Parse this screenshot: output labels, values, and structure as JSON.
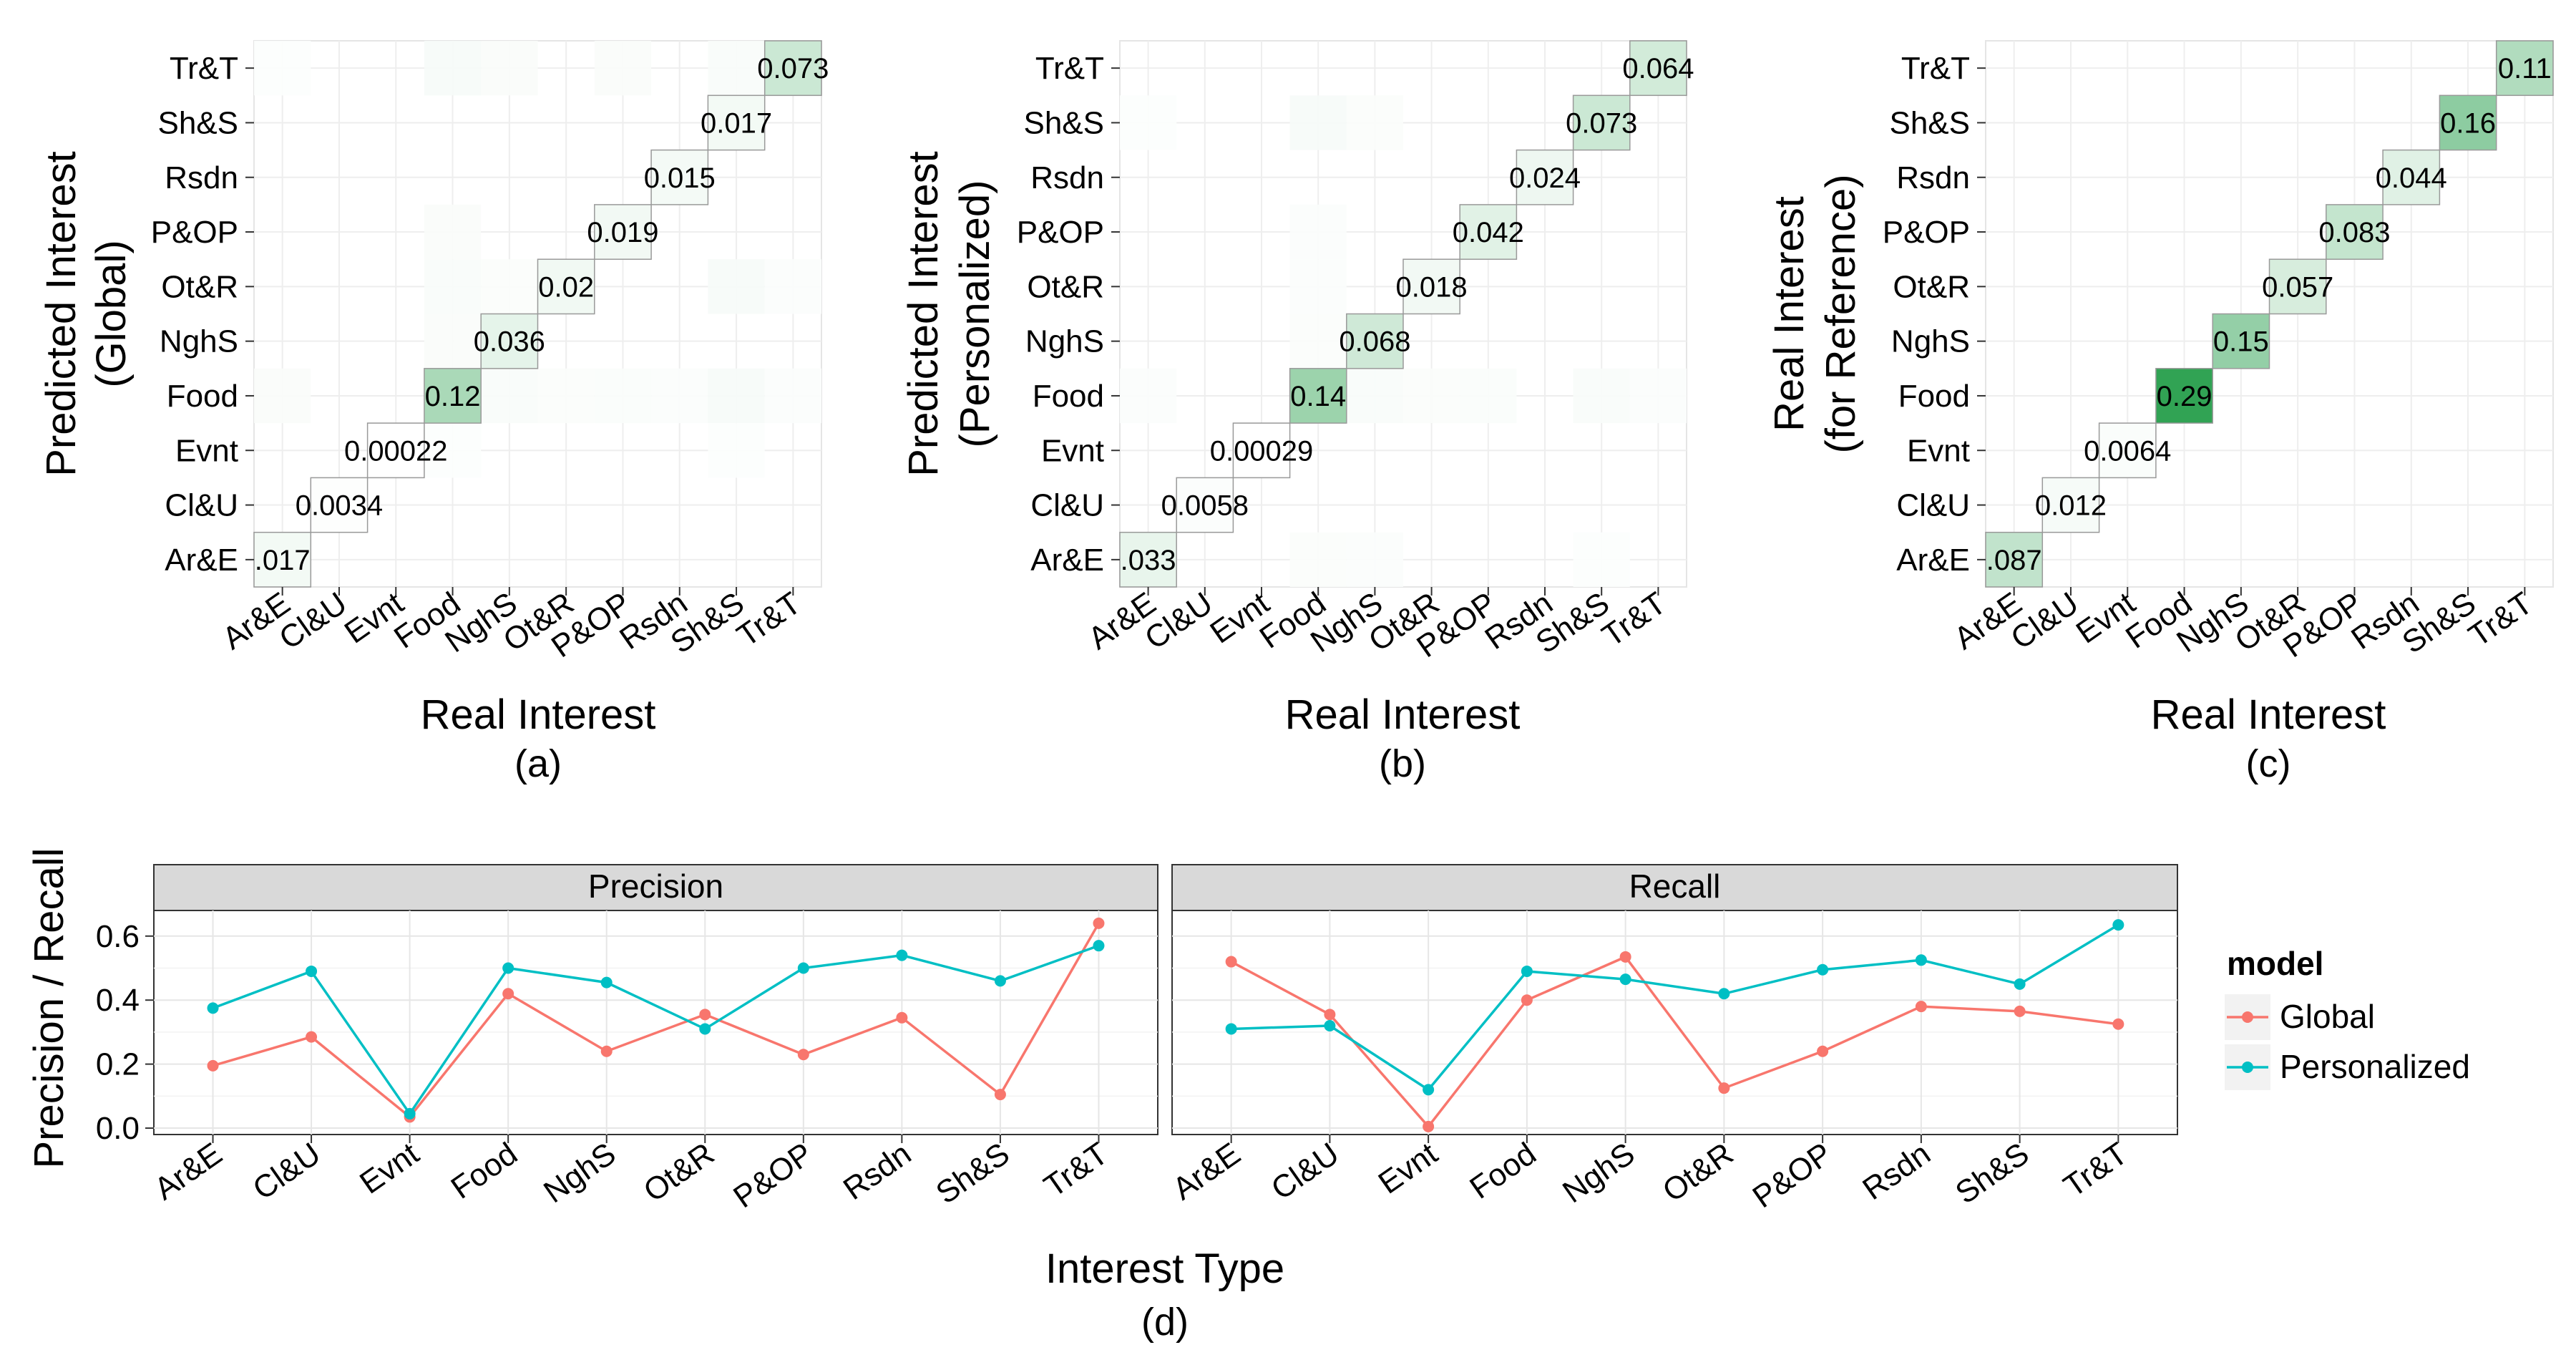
{
  "chart_data": [
    {
      "type": "heatmap",
      "panel": "(a)",
      "xlabel": "Real Interest",
      "ylabel": [
        "Predicted Interest",
        "(Global)"
      ],
      "categories": [
        "Ar&E",
        "Cl&U",
        "Evnt",
        "Food",
        "NghS",
        "Ot&R",
        "P&OP",
        "Rsdn",
        "Sh&S",
        "Tr&T"
      ],
      "diagonal_values": [
        0.017,
        0.0034,
        0.00022,
        0.12,
        0.036,
        0.02,
        0.019,
        0.015,
        0.017,
        0.073
      ],
      "diagonal_labels": [
        ".017",
        "0.0034",
        "0.00022",
        "0.12",
        "0.036",
        "0.02",
        "0.019",
        "0.015",
        "0.017",
        "0.073"
      ],
      "off_diagonal": [
        {
          "x": "Food",
          "y": "Tr&T",
          "value": 0.012
        },
        {
          "x": "NghS",
          "y": "Tr&T",
          "value": 0.008
        },
        {
          "x": "P&OP",
          "y": "Tr&T",
          "value": 0.008
        },
        {
          "x": "Sh&S",
          "y": "Tr&T",
          "value": 0.01
        },
        {
          "x": "Ar&E",
          "y": "Tr&T",
          "value": 0.004
        },
        {
          "x": "Food",
          "y": "P&OP",
          "value": 0.008
        },
        {
          "x": "Food",
          "y": "Ot&R",
          "value": 0.01
        },
        {
          "x": "NghS",
          "y": "Ot&R",
          "value": 0.006
        },
        {
          "x": "Sh&S",
          "y": "Ot&R",
          "value": 0.012
        },
        {
          "x": "Tr&T",
          "y": "Ot&R",
          "value": 0.005
        },
        {
          "x": "Ar&E",
          "y": "Food",
          "value": 0.008
        },
        {
          "x": "NghS",
          "y": "Food",
          "value": 0.01
        },
        {
          "x": "Ot&R",
          "y": "Food",
          "value": 0.006
        },
        {
          "x": "P&OP",
          "y": "Food",
          "value": 0.007
        },
        {
          "x": "Rsdn",
          "y": "Food",
          "value": 0.005
        },
        {
          "x": "Sh&S",
          "y": "Food",
          "value": 0.012
        },
        {
          "x": "Tr&T",
          "y": "Food",
          "value": 0.005
        },
        {
          "x": "Food",
          "y": "NghS",
          "value": 0.008
        },
        {
          "x": "Food",
          "y": "Evnt",
          "value": 0.004
        },
        {
          "x": "Sh&S",
          "y": "Evnt",
          "value": 0.004
        }
      ],
      "grid": true
    },
    {
      "type": "heatmap",
      "panel": "(b)",
      "xlabel": "Real Interest",
      "ylabel": [
        "Predicted Interest",
        "(Personalized)"
      ],
      "categories": [
        "Ar&E",
        "Cl&U",
        "Evnt",
        "Food",
        "NghS",
        "Ot&R",
        "P&OP",
        "Rsdn",
        "Sh&S",
        "Tr&T"
      ],
      "diagonal_values": [
        0.033,
        0.0058,
        0.00029,
        0.14,
        0.068,
        0.018,
        0.042,
        0.024,
        0.073,
        0.064
      ],
      "diagonal_labels": [
        ".033",
        "0.0058",
        "0.00029",
        "0.14",
        "0.068",
        "0.018",
        "0.042",
        "0.024",
        "0.073",
        "0.064"
      ],
      "off_diagonal": [
        {
          "x": "Food",
          "y": "Sh&S",
          "value": 0.012
        },
        {
          "x": "NghS",
          "y": "Sh&S",
          "value": 0.006
        },
        {
          "x": "Ar&E",
          "y": "Sh&S",
          "value": 0.004
        },
        {
          "x": "Food",
          "y": "P&OP",
          "value": 0.005
        },
        {
          "x": "Food",
          "y": "Ot&R",
          "value": 0.005
        },
        {
          "x": "Ar&E",
          "y": "Food",
          "value": 0.005
        },
        {
          "x": "NghS",
          "y": "Food",
          "value": 0.01
        },
        {
          "x": "Ot&R",
          "y": "Food",
          "value": 0.006
        },
        {
          "x": "P&OP",
          "y": "Food",
          "value": 0.007
        },
        {
          "x": "Sh&S",
          "y": "Food",
          "value": 0.01
        },
        {
          "x": "Tr&T",
          "y": "Food",
          "value": 0.005
        },
        {
          "x": "Food",
          "y": "NghS",
          "value": 0.006
        },
        {
          "x": "Food",
          "y": "Ar&E",
          "value": 0.006
        },
        {
          "x": "NghS",
          "y": "Ar&E",
          "value": 0.005
        },
        {
          "x": "Sh&S",
          "y": "Ar&E",
          "value": 0.004
        }
      ],
      "grid": true
    },
    {
      "type": "heatmap",
      "panel": "(c)",
      "xlabel": "Real Interest",
      "ylabel": [
        "Real Interest",
        "(for Reference)"
      ],
      "categories": [
        "Ar&E",
        "Cl&U",
        "Evnt",
        "Food",
        "NghS",
        "Ot&R",
        "P&OP",
        "Rsdn",
        "Sh&S",
        "Tr&T"
      ],
      "diagonal_values": [
        0.087,
        0.012,
        0.0064,
        0.29,
        0.15,
        0.057,
        0.083,
        0.044,
        0.16,
        0.11
      ],
      "diagonal_labels": [
        ".087",
        "0.012",
        "0.0064",
        "0.29",
        "0.15",
        "0.057",
        "0.083",
        "0.044",
        "0.16",
        "0.11"
      ],
      "off_diagonal": [],
      "grid": true
    },
    {
      "type": "line",
      "panel": "(d)",
      "xlabel": "Interest Type",
      "ylabel": "Precision / Recall",
      "facets": [
        "Precision",
        "Recall"
      ],
      "categories": [
        "Ar&E",
        "Cl&U",
        "Evnt",
        "Food",
        "NghS",
        "Ot&R",
        "P&OP",
        "Rsdn",
        "Sh&S",
        "Tr&T"
      ],
      "ylim": [
        -0.02,
        0.68
      ],
      "yticks": [
        0.0,
        0.2,
        0.4,
        0.6
      ],
      "ytick_labels": [
        "0.0",
        "0.2",
        "0.4",
        "0.6"
      ],
      "legend": {
        "title": "model",
        "position": "right"
      },
      "series": [
        {
          "name": "Global",
          "color": "#F8766D",
          "precision": [
            0.195,
            0.285,
            0.035,
            0.42,
            0.24,
            0.355,
            0.23,
            0.345,
            0.105,
            0.64
          ],
          "recall": [
            0.52,
            0.355,
            0.005,
            0.4,
            0.535,
            0.125,
            0.24,
            0.38,
            0.365,
            0.325
          ]
        },
        {
          "name": "Personalized",
          "color": "#00BFC4",
          "precision": [
            0.375,
            0.49,
            0.045,
            0.5,
            0.455,
            0.31,
            0.5,
            0.54,
            0.46,
            0.57
          ],
          "recall": [
            0.31,
            0.32,
            0.12,
            0.49,
            0.465,
            0.42,
            0.495,
            0.525,
            0.45,
            0.635
          ]
        }
      ],
      "grid": true
    }
  ]
}
